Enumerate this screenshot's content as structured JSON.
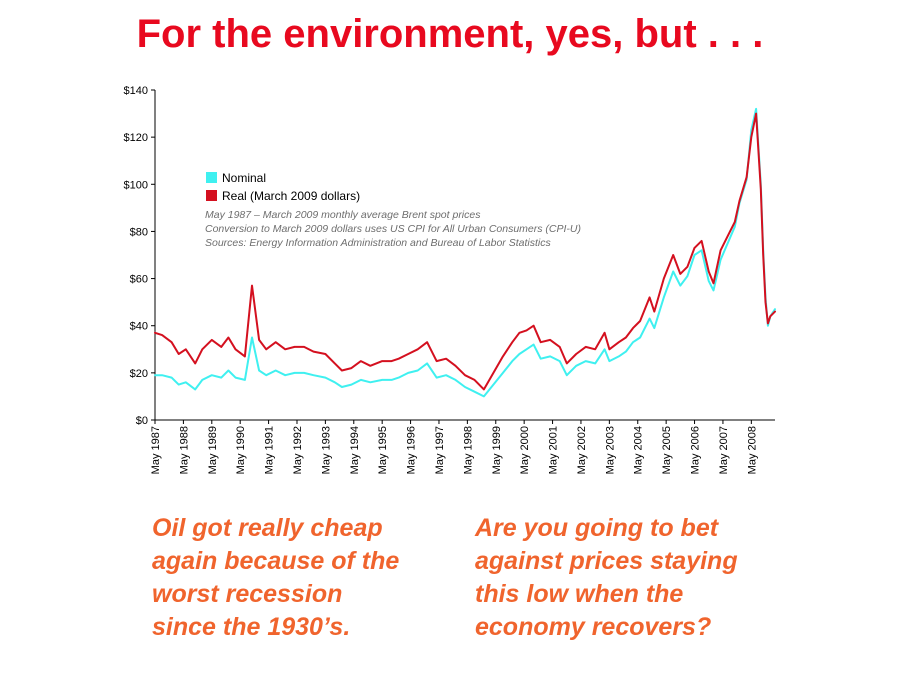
{
  "slide": {
    "title": "For the environment, yes, but . . .",
    "caption_left": [
      "Oil got really cheap",
      "again because of the",
      "worst recession",
      "since the 1930’s."
    ],
    "caption_right": [
      "Are you going to bet",
      "against prices staying",
      "this low when the",
      "economy recovers?"
    ],
    "colors": {
      "title": "#e8091f",
      "caption": "#f0642d"
    }
  },
  "chart_data": {
    "type": "line",
    "title": "",
    "xlabel": "",
    "ylabel": "",
    "ylim": [
      0,
      140
    ],
    "y_ticks": [
      0,
      20,
      40,
      60,
      80,
      100,
      120,
      140
    ],
    "y_tick_labels": [
      "$0",
      "$20",
      "$40",
      "$60",
      "$80",
      "$100",
      "$120",
      "$140"
    ],
    "x_range": [
      "May 1987",
      "Mar 2009"
    ],
    "x_tick_labels": [
      "May 1987",
      "May 1988",
      "May 1989",
      "May 1990",
      "May 1991",
      "May 1992",
      "May 1993",
      "May 1994",
      "May 1995",
      "May 1996",
      "May 1997",
      "May 1998",
      "May 1999",
      "May 2000",
      "May 2001",
      "May 2002",
      "May 2003",
      "May 2004",
      "May 2005",
      "May 2006",
      "May 2007",
      "May 2008"
    ],
    "grid": false,
    "legend_position": "top-left",
    "notes": [
      "May 1987 – March 2009 monthly average Brent spot prices",
      "Conversion to March 2009 dollars uses US CPI for All Urban Consumers (CPI-U)",
      "Sources: Energy Information Administration and Bureau of Labor Statistics"
    ],
    "series": [
      {
        "name": "Nominal",
        "color": "#3ff0f0",
        "x": [
          "1987-05",
          "1987-08",
          "1987-12",
          "1988-03",
          "1988-06",
          "1988-10",
          "1989-01",
          "1989-05",
          "1989-09",
          "1989-12",
          "1990-03",
          "1990-07",
          "1990-10",
          "1991-01",
          "1991-04",
          "1991-08",
          "1991-12",
          "1992-04",
          "1992-08",
          "1992-12",
          "1993-05",
          "1993-09",
          "1993-12",
          "1994-04",
          "1994-08",
          "1994-12",
          "1995-05",
          "1995-09",
          "1995-12",
          "1996-04",
          "1996-08",
          "1996-12",
          "1997-04",
          "1997-08",
          "1997-12",
          "1998-04",
          "1998-08",
          "1998-12",
          "1999-04",
          "1999-08",
          "1999-12",
          "2000-03",
          "2000-06",
          "2000-09",
          "2000-12",
          "2001-04",
          "2001-08",
          "2001-11",
          "2002-03",
          "2002-07",
          "2002-11",
          "2003-03",
          "2003-05",
          "2003-09",
          "2003-12",
          "2004-03",
          "2004-06",
          "2004-10",
          "2004-12",
          "2005-04",
          "2005-08",
          "2005-11",
          "2006-02",
          "2006-05",
          "2006-08",
          "2006-11",
          "2007-01",
          "2007-04",
          "2007-07",
          "2007-10",
          "2007-12",
          "2008-03",
          "2008-05",
          "2008-07",
          "2008-09",
          "2008-10",
          "2008-11",
          "2008-12",
          "2009-01",
          "2009-03"
        ],
        "values": [
          19,
          19,
          18,
          15,
          16,
          13,
          17,
          19,
          18,
          21,
          18,
          17,
          35,
          21,
          19,
          21,
          19,
          20,
          20,
          19,
          18,
          16,
          14,
          15,
          17,
          16,
          17,
          17,
          18,
          20,
          21,
          24,
          18,
          19,
          17,
          14,
          12,
          10,
          15,
          20,
          25,
          28,
          30,
          32,
          26,
          27,
          25,
          19,
          23,
          25,
          24,
          30,
          25,
          27,
          29,
          33,
          35,
          43,
          39,
          52,
          63,
          57,
          61,
          70,
          72,
          59,
          55,
          68,
          75,
          82,
          92,
          102,
          123,
          132,
          100,
          72,
          52,
          40,
          44,
          47
        ]
      },
      {
        "name": "Real (March 2009 dollars)",
        "color": "#d4101f",
        "x": [
          "1987-05",
          "1987-08",
          "1987-12",
          "1988-03",
          "1988-06",
          "1988-10",
          "1989-01",
          "1989-05",
          "1989-09",
          "1989-12",
          "1990-03",
          "1990-07",
          "1990-10",
          "1991-01",
          "1991-04",
          "1991-08",
          "1991-12",
          "1992-04",
          "1992-08",
          "1992-12",
          "1993-05",
          "1993-09",
          "1993-12",
          "1994-04",
          "1994-08",
          "1994-12",
          "1995-05",
          "1995-09",
          "1995-12",
          "1996-04",
          "1996-08",
          "1996-12",
          "1997-04",
          "1997-08",
          "1997-12",
          "1998-04",
          "1998-08",
          "1998-12",
          "1999-04",
          "1999-08",
          "1999-12",
          "2000-03",
          "2000-06",
          "2000-09",
          "2000-12",
          "2001-04",
          "2001-08",
          "2001-11",
          "2002-03",
          "2002-07",
          "2002-11",
          "2003-03",
          "2003-05",
          "2003-09",
          "2003-12",
          "2004-03",
          "2004-06",
          "2004-10",
          "2004-12",
          "2005-04",
          "2005-08",
          "2005-11",
          "2006-02",
          "2006-05",
          "2006-08",
          "2006-11",
          "2007-01",
          "2007-04",
          "2007-07",
          "2007-10",
          "2007-12",
          "2008-03",
          "2008-05",
          "2008-07",
          "2008-09",
          "2008-10",
          "2008-11",
          "2008-12",
          "2009-01",
          "2009-03"
        ],
        "values": [
          37,
          36,
          33,
          28,
          30,
          24,
          30,
          34,
          31,
          35,
          30,
          27,
          57,
          34,
          30,
          33,
          30,
          31,
          31,
          29,
          28,
          24,
          21,
          22,
          25,
          23,
          25,
          25,
          26,
          28,
          30,
          33,
          25,
          26,
          23,
          19,
          17,
          13,
          20,
          27,
          33,
          37,
          38,
          40,
          33,
          34,
          31,
          24,
          28,
          31,
          30,
          37,
          30,
          33,
          35,
          39,
          42,
          52,
          46,
          60,
          70,
          62,
          65,
          73,
          76,
          63,
          58,
          72,
          78,
          84,
          93,
          103,
          120,
          130,
          98,
          70,
          50,
          41,
          44,
          46
        ]
      }
    ]
  }
}
